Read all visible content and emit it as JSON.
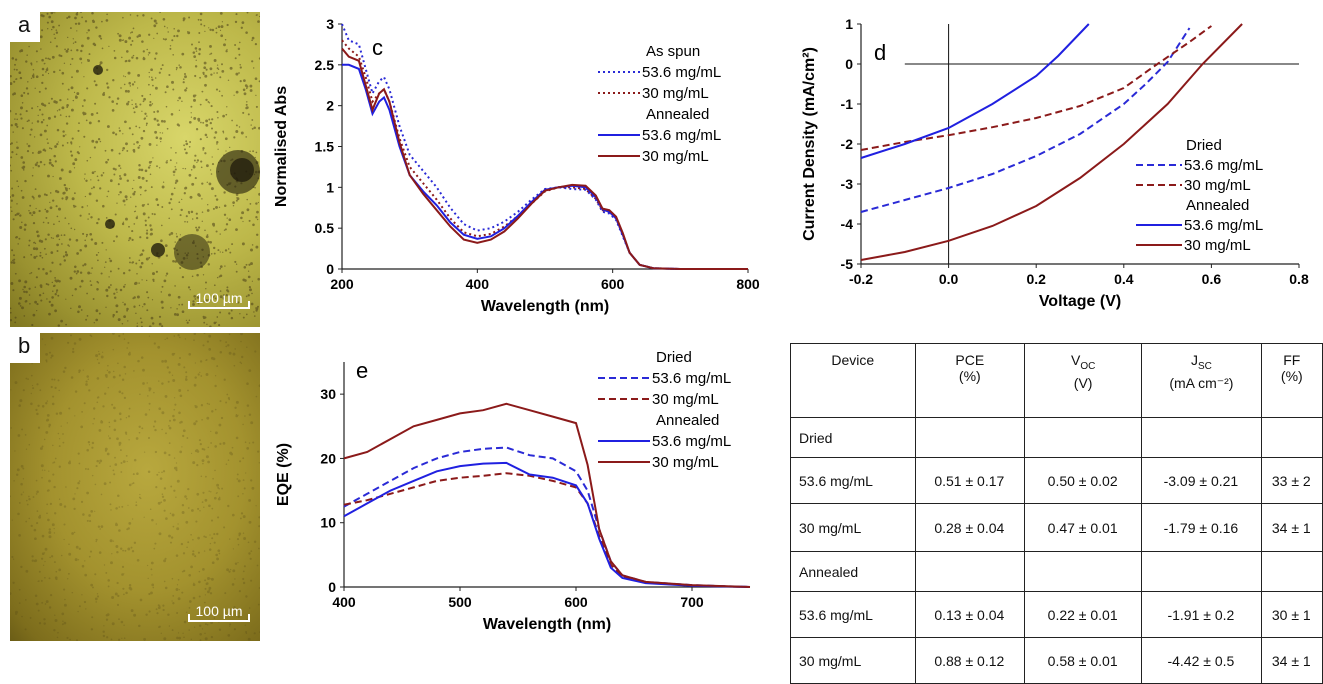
{
  "micrographs": [
    {
      "label": "a",
      "scale": "100 µm"
    },
    {
      "label": "b",
      "scale": "100 µm"
    }
  ],
  "chart_data": [
    {
      "panel": "c",
      "type": "line",
      "xlabel": "Wavelength (nm)",
      "ylabel": "Normalised Abs",
      "xlim": [
        200,
        800
      ],
      "ylim": [
        0,
        3
      ],
      "xticks": [
        "200",
        "400",
        "600",
        "800"
      ],
      "yticks": [
        "0",
        "0.5",
        "1",
        "1.5",
        "2",
        "2.5",
        "3"
      ],
      "legend": [
        "As spun",
        "53.6 mg/mL",
        "30 mg/mL",
        "Annealed",
        "53.6 mg/mL",
        "30 mg/mL"
      ],
      "series": [
        {
          "name": "As spun 53.6 mg/mL",
          "color": "#2a2ad6",
          "dash": "dot",
          "x": [
            200,
            210,
            225,
            235,
            245,
            255,
            262,
            270,
            285,
            300,
            320,
            340,
            360,
            380,
            400,
            420,
            440,
            460,
            480,
            500,
            520,
            540,
            560,
            575,
            585,
            595,
            605,
            615,
            625,
            640,
            660,
            700,
            800
          ],
          "y": [
            3.0,
            2.8,
            2.75,
            2.45,
            2.15,
            2.3,
            2.35,
            2.2,
            1.75,
            1.4,
            1.2,
            1.0,
            0.75,
            0.55,
            0.47,
            0.5,
            0.58,
            0.7,
            0.85,
            0.98,
            1.0,
            0.98,
            0.97,
            0.85,
            0.7,
            0.68,
            0.6,
            0.4,
            0.2,
            0.05,
            0.01,
            0,
            0
          ]
        },
        {
          "name": "As spun 30 mg/mL",
          "color": "#8b1a1a",
          "dash": "dot",
          "x": [
            200,
            210,
            225,
            235,
            245,
            255,
            262,
            270,
            285,
            300,
            320,
            340,
            360,
            380,
            400,
            420,
            440,
            460,
            480,
            500,
            520,
            540,
            560,
            575,
            585,
            595,
            605,
            615,
            625,
            640,
            660,
            700,
            800
          ],
          "y": [
            2.8,
            2.7,
            2.6,
            2.35,
            2.05,
            2.15,
            2.2,
            2.05,
            1.6,
            1.25,
            1.05,
            0.85,
            0.62,
            0.45,
            0.4,
            0.43,
            0.52,
            0.65,
            0.8,
            0.95,
            1.0,
            1.0,
            0.98,
            0.86,
            0.72,
            0.7,
            0.62,
            0.42,
            0.2,
            0.05,
            0.01,
            0,
            0
          ]
        },
        {
          "name": "Annealed 53.6 mg/mL",
          "color": "#2020e0",
          "dash": "solid",
          "x": [
            200,
            210,
            225,
            235,
            245,
            255,
            262,
            270,
            285,
            300,
            320,
            340,
            360,
            380,
            400,
            420,
            440,
            460,
            480,
            500,
            520,
            540,
            560,
            575,
            585,
            595,
            605,
            615,
            625,
            640,
            660,
            700,
            800
          ],
          "y": [
            2.5,
            2.5,
            2.45,
            2.2,
            1.9,
            2.05,
            2.1,
            1.95,
            1.5,
            1.15,
            0.95,
            0.78,
            0.57,
            0.42,
            0.37,
            0.4,
            0.5,
            0.65,
            0.82,
            0.97,
            1.0,
            1.02,
            1.0,
            0.88,
            0.73,
            0.7,
            0.62,
            0.42,
            0.2,
            0.05,
            0.01,
            0,
            0
          ]
        },
        {
          "name": "Annealed 30 mg/mL",
          "color": "#8b1a1a",
          "dash": "solid",
          "x": [
            200,
            210,
            225,
            235,
            245,
            255,
            262,
            270,
            285,
            300,
            320,
            340,
            360,
            380,
            400,
            420,
            440,
            460,
            480,
            500,
            520,
            540,
            560,
            575,
            585,
            595,
            605,
            615,
            625,
            640,
            660,
            700,
            800
          ],
          "y": [
            2.7,
            2.6,
            2.55,
            2.25,
            1.95,
            2.15,
            2.2,
            2.05,
            1.55,
            1.15,
            0.92,
            0.72,
            0.52,
            0.36,
            0.32,
            0.36,
            0.46,
            0.62,
            0.8,
            0.96,
            1.0,
            1.03,
            1.02,
            0.9,
            0.74,
            0.72,
            0.64,
            0.44,
            0.2,
            0.05,
            0.01,
            0,
            0
          ]
        }
      ]
    },
    {
      "panel": "d",
      "type": "line",
      "xlabel": "Voltage (V)",
      "ylabel": "Current Density (mA/cm²)",
      "xlim": [
        -0.2,
        0.8
      ],
      "ylim": [
        -5,
        1
      ],
      "xticks": [
        "-0.2",
        "0.0",
        "0.2",
        "0.4",
        "0.6",
        "0.8"
      ],
      "yticks": [
        "-5",
        "-4",
        "-3",
        "-2",
        "-1",
        "0",
        "1"
      ],
      "legend": [
        "Dried",
        "53.6 mg/mL",
        "30 mg/mL",
        "Annealed",
        "53.6 mg/mL",
        "30 mg/mL"
      ],
      "series": [
        {
          "name": "Dried 53.6 mg/mL",
          "color": "#2a2ad6",
          "dash": "dash",
          "x": [
            -0.2,
            -0.1,
            0.0,
            0.1,
            0.2,
            0.3,
            0.4,
            0.45,
            0.5,
            0.55
          ],
          "y": [
            -3.7,
            -3.4,
            -3.1,
            -2.75,
            -2.3,
            -1.75,
            -1.0,
            -0.5,
            0.05,
            0.9
          ]
        },
        {
          "name": "Dried 30 mg/mL",
          "color": "#8b1a1a",
          "dash": "dash",
          "x": [
            -0.2,
            -0.1,
            0.0,
            0.1,
            0.2,
            0.3,
            0.4,
            0.47,
            0.55,
            0.6
          ],
          "y": [
            -2.15,
            -1.95,
            -1.78,
            -1.58,
            -1.35,
            -1.05,
            -0.6,
            -0.05,
            0.55,
            0.95
          ]
        },
        {
          "name": "Annealed 53.6 mg/mL",
          "color": "#2020e0",
          "dash": "solid",
          "x": [
            -0.2,
            -0.1,
            0.0,
            0.1,
            0.2,
            0.25,
            0.32
          ],
          "y": [
            -2.35,
            -2.0,
            -1.6,
            -1.0,
            -0.3,
            0.2,
            1.0
          ]
        },
        {
          "name": "Annealed 30 mg/mL",
          "color": "#8b1a1a",
          "dash": "solid",
          "x": [
            -0.2,
            -0.1,
            0.0,
            0.1,
            0.2,
            0.3,
            0.4,
            0.5,
            0.58,
            0.67
          ],
          "y": [
            -4.9,
            -4.7,
            -4.42,
            -4.05,
            -3.55,
            -2.85,
            -2.0,
            -1.0,
            0.0,
            1.0
          ]
        }
      ]
    },
    {
      "panel": "e",
      "type": "line",
      "xlabel": "Wavelength (nm)",
      "ylabel": "EQE (%)",
      "xlim": [
        400,
        750
      ],
      "ylim": [
        0,
        35
      ],
      "xticks": [
        "400",
        "500",
        "600",
        "700"
      ],
      "yticks": [
        "0",
        "10",
        "20",
        "30"
      ],
      "legend": [
        "Dried",
        "53.6 mg/mL",
        "30 mg/mL",
        "Annealed",
        "53.6 mg/mL",
        "30 mg/mL"
      ],
      "series": [
        {
          "name": "Dried 53.6 mg/mL",
          "color": "#2a2ad6",
          "dash": "dash",
          "x": [
            400,
            420,
            440,
            460,
            480,
            500,
            520,
            540,
            560,
            580,
            600,
            610,
            620,
            630,
            640,
            660,
            700,
            750
          ],
          "y": [
            12.5,
            14.5,
            16.5,
            18.5,
            20,
            21,
            21.5,
            21.7,
            20.5,
            20,
            18,
            15,
            9,
            4,
            1.8,
            0.8,
            0.3,
            0
          ]
        },
        {
          "name": "Dried 30 mg/mL",
          "color": "#8b1a1a",
          "dash": "dash",
          "x": [
            400,
            420,
            440,
            460,
            480,
            500,
            520,
            540,
            560,
            580,
            600,
            610,
            620,
            630,
            640,
            660,
            700,
            750
          ],
          "y": [
            12.8,
            13.5,
            14.5,
            15.5,
            16.5,
            17,
            17.3,
            17.7,
            17.3,
            16.5,
            15.5,
            13,
            8,
            3.5,
            1.5,
            0.7,
            0.2,
            0
          ]
        },
        {
          "name": "Annealed 53.6 mg/mL",
          "color": "#2020e0",
          "dash": "solid",
          "x": [
            400,
            420,
            440,
            460,
            480,
            500,
            520,
            540,
            560,
            580,
            600,
            610,
            620,
            630,
            640,
            660,
            700,
            750
          ],
          "y": [
            11,
            13,
            15,
            16.5,
            18,
            18.8,
            19.2,
            19.3,
            17.5,
            17,
            15.8,
            13,
            7.5,
            3,
            1.4,
            0.6,
            0.2,
            0
          ]
        },
        {
          "name": "Annealed 30 mg/mL",
          "color": "#8b1a1a",
          "dash": "solid",
          "x": [
            400,
            420,
            440,
            460,
            480,
            500,
            520,
            540,
            560,
            580,
            600,
            610,
            620,
            630,
            640,
            660,
            700,
            750
          ],
          "y": [
            20,
            21,
            23,
            25,
            26,
            27,
            27.5,
            28.5,
            27.5,
            26.5,
            25.5,
            19,
            9,
            4,
            1.8,
            0.8,
            0.3,
            0
          ]
        }
      ]
    }
  ],
  "table": {
    "headers": [
      {
        "main": "Device",
        "unit": ""
      },
      {
        "main": "PCE",
        "unit": "(%)"
      },
      {
        "main": "V",
        "sub": "OC",
        "unit": "(V)"
      },
      {
        "main": "J",
        "sub": "SC",
        "unit": "(mA cm⁻²)"
      },
      {
        "main": "FF",
        "unit": "(%)"
      }
    ],
    "rows": [
      {
        "section": "Dried"
      },
      {
        "cells": [
          "53.6 mg/mL",
          "0.51 ± 0.17",
          "0.50 ± 0.02",
          "-3.09 ± 0.21",
          "33 ± 2"
        ]
      },
      {
        "cells": [
          "30 mg/mL",
          "0.28 ± 0.04",
          "0.47 ± 0.01",
          "-1.79 ± 0.16",
          "34 ± 1"
        ]
      },
      {
        "section": "Annealed"
      },
      {
        "cells": [
          "53.6 mg/mL",
          "0.13 ± 0.04",
          "0.22 ± 0.01",
          "-1.91 ± 0.2",
          "30 ± 1"
        ]
      },
      {
        "cells": [
          "30 mg/mL",
          "0.88 ± 0.12",
          "0.58 ± 0.01",
          "-4.42 ± 0.5",
          "34 ± 1"
        ]
      }
    ]
  }
}
